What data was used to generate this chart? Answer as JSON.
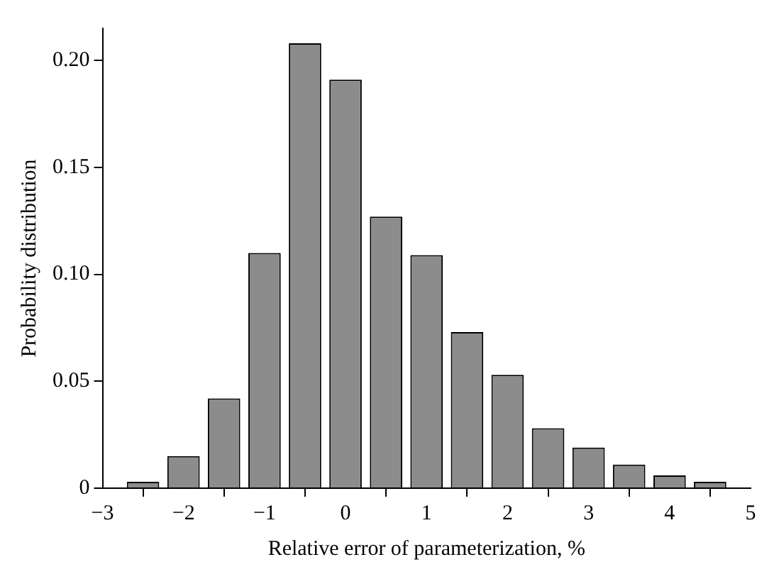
{
  "chart_data": {
    "type": "histogram",
    "xlabel": "Relative error of parameterization, %",
    "ylabel": "Probability distribution",
    "bins": [
      -2.75,
      -2.25,
      -1.75,
      -1.25,
      -0.75,
      -0.25,
      0.25,
      0.75,
      1.25,
      1.75,
      2.25,
      2.75,
      3.25,
      3.75,
      4.25,
      4.75
    ],
    "values": [
      0.003,
      0.015,
      0.042,
      0.11,
      0.208,
      0.191,
      0.127,
      0.109,
      0.073,
      0.053,
      0.028,
      0.019,
      0.011,
      0.006,
      0.003
    ],
    "color": "#8c8c8c",
    "xlim": [
      -3,
      5
    ],
    "xticks": [
      {
        "value": -3,
        "label": "−3"
      },
      {
        "value": -2,
        "label": "−2"
      },
      {
        "value": -1,
        "label": "−1"
      },
      0,
      1,
      2,
      3,
      4,
      5
    ],
    "ylim": [
      0,
      0.215
    ],
    "yticks": [
      0,
      {
        "value": 0.05,
        "label": "0.05"
      },
      {
        "value": 0.1,
        "label": "0.10"
      },
      {
        "value": 0.15,
        "label": "0.15"
      },
      {
        "value": 0.2,
        "label": "0.20"
      }
    ],
    "grid": false,
    "legend": false
  }
}
